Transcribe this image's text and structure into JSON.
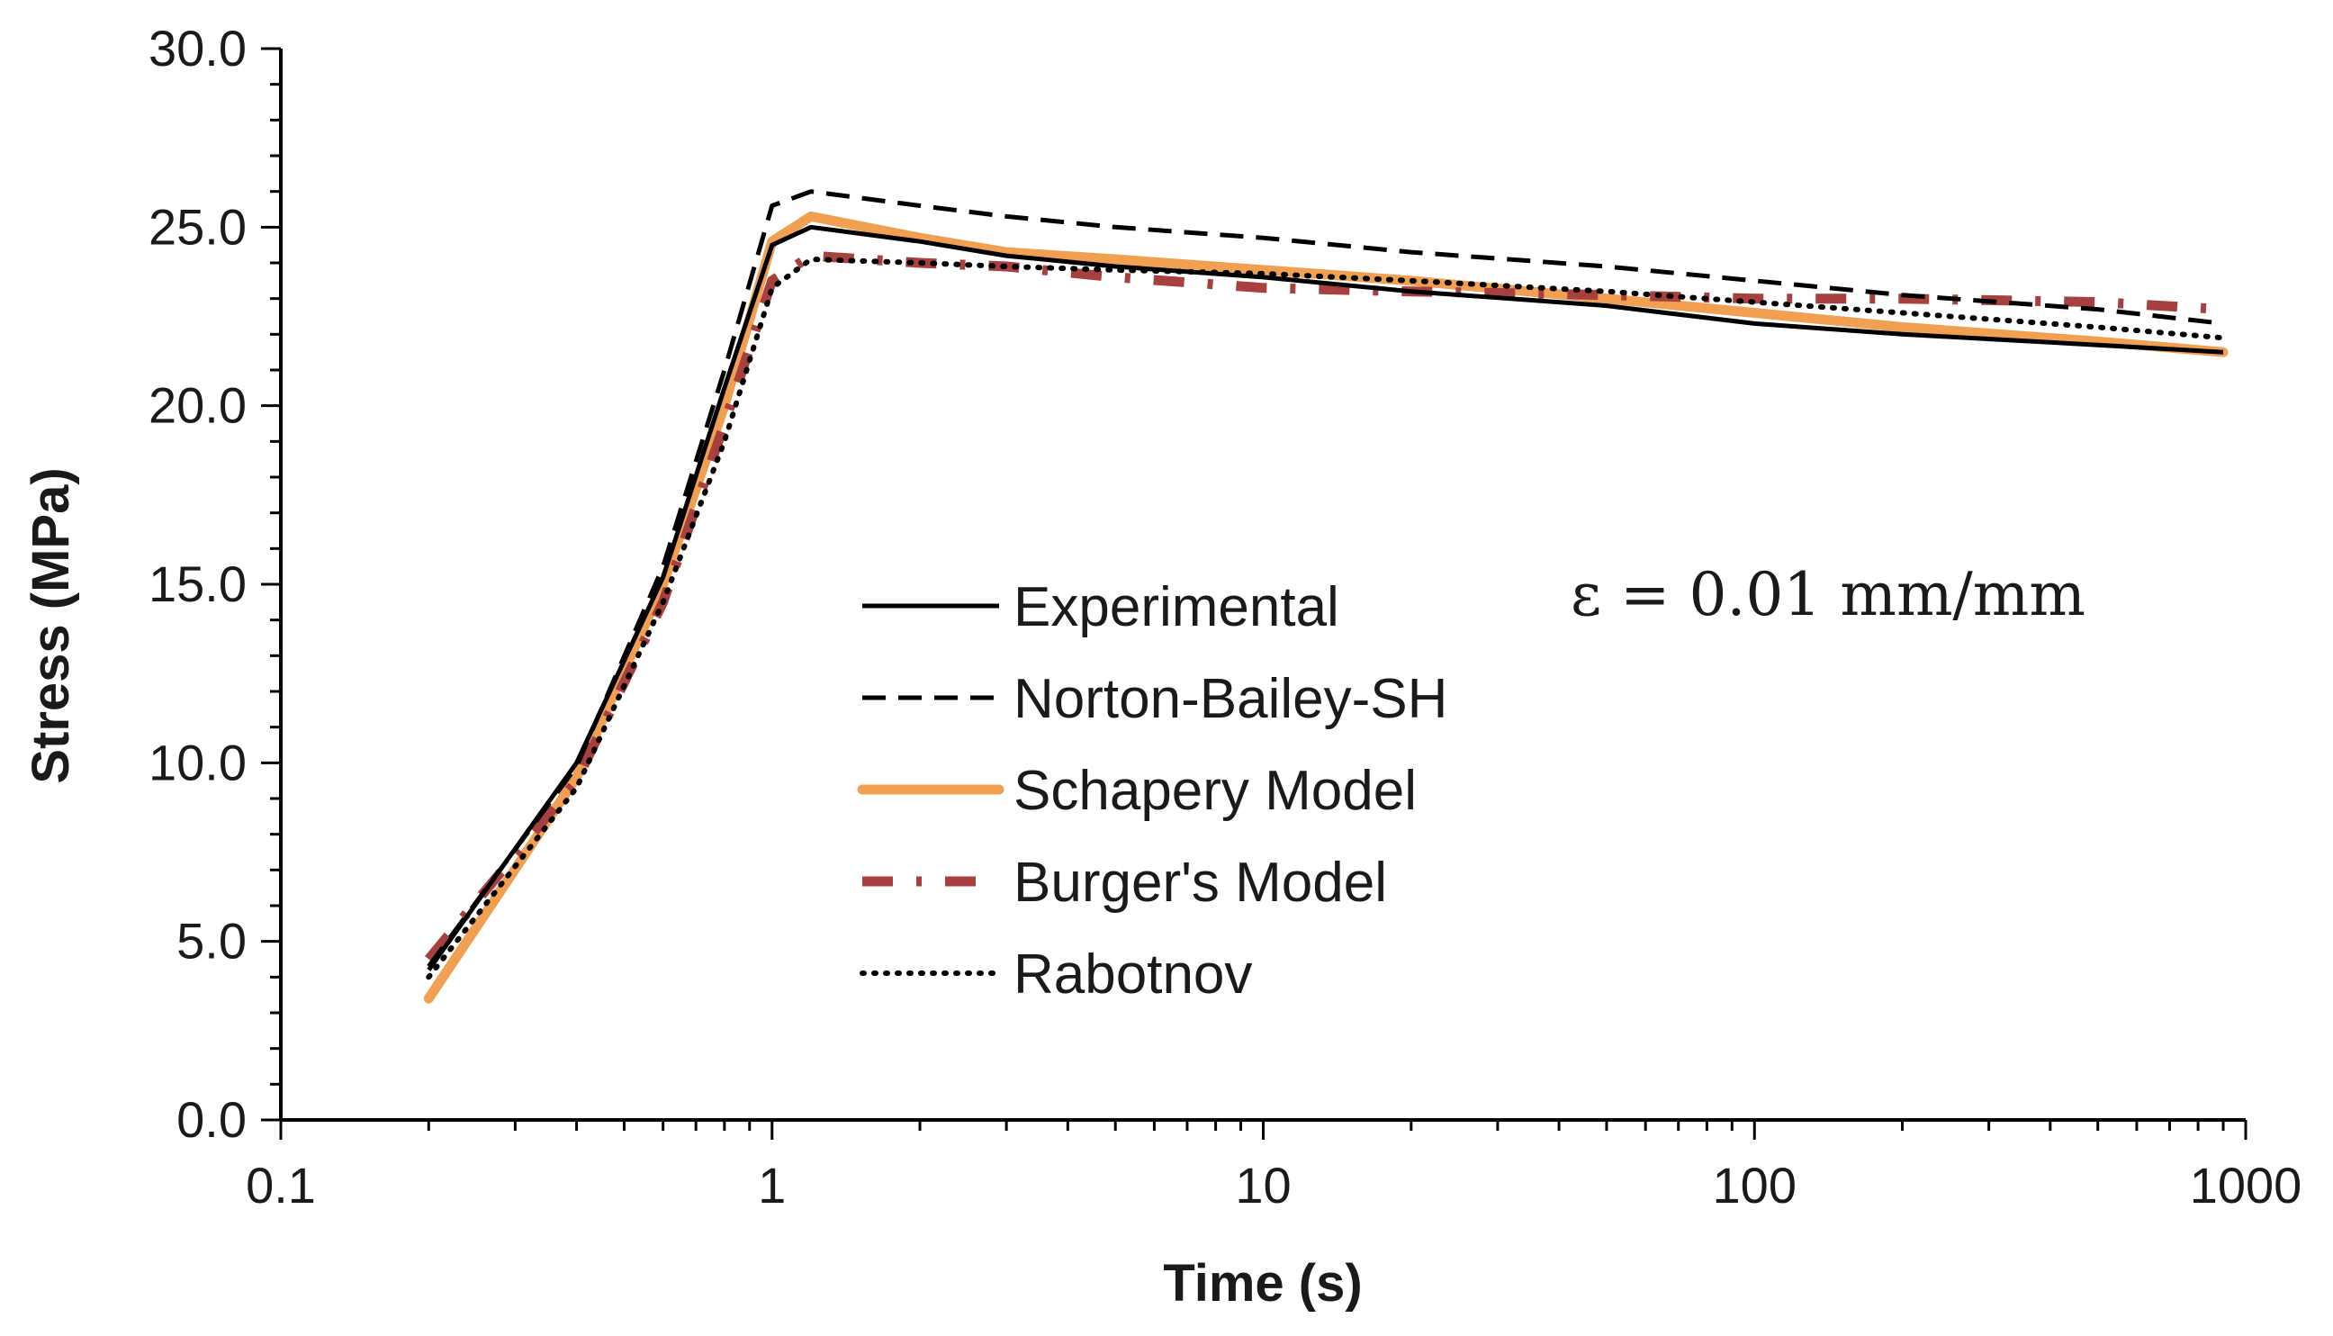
{
  "chart_data": {
    "type": "line",
    "title": "",
    "xlabel": "Time (s)",
    "ylabel": "Stress (MPa)",
    "xscale": "log",
    "xlim": [
      0.1,
      1000
    ],
    "ylim": [
      0,
      30
    ],
    "x_ticks": [
      "0.1",
      "1",
      "10",
      "100",
      "1000"
    ],
    "y_ticks": [
      "0.0",
      "5.0",
      "10.0",
      "15.0",
      "20.0",
      "25.0",
      "30.0"
    ],
    "grid": false,
    "legend_position": "center",
    "annotation": "ε = 0.01 mm/mm",
    "series": [
      {
        "name": "Experimental",
        "color": "#000000",
        "style": "solid",
        "x": [
          0.2,
          0.4,
          0.6,
          0.8,
          1.0,
          1.2,
          2,
          3,
          5,
          10,
          20,
          50,
          100,
          200,
          500,
          900
        ],
        "y": [
          4.2,
          10.0,
          15.2,
          20.5,
          24.5,
          25.0,
          24.6,
          24.2,
          23.9,
          23.6,
          23.2,
          22.8,
          22.3,
          22.0,
          21.7,
          21.5
        ]
      },
      {
        "name": "Norton-Bailey-SH",
        "color": "#000000",
        "style": "dashed",
        "x": [
          0.2,
          0.4,
          0.6,
          0.8,
          1.0,
          1.2,
          2,
          3,
          5,
          10,
          20,
          50,
          100,
          200,
          500,
          900
        ],
        "y": [
          4.3,
          9.9,
          15.5,
          21.0,
          25.6,
          26.0,
          25.6,
          25.3,
          25.0,
          24.7,
          24.3,
          23.9,
          23.5,
          23.1,
          22.7,
          22.3
        ]
      },
      {
        "name": "Schapery Model",
        "color": "#f0a050",
        "style": "solid-thick",
        "x": [
          0.2,
          0.4,
          0.6,
          0.8,
          1.0,
          1.2,
          2,
          3,
          5,
          10,
          20,
          50,
          100,
          200,
          500,
          900
        ],
        "y": [
          3.4,
          9.6,
          15.0,
          20.0,
          24.6,
          25.3,
          24.7,
          24.3,
          24.1,
          23.8,
          23.5,
          23.0,
          22.6,
          22.2,
          21.8,
          21.5
        ]
      },
      {
        "name": "Burger's Model",
        "color": "#a84040",
        "style": "dash-dot",
        "x": [
          0.2,
          0.4,
          0.6,
          0.8,
          1.0,
          1.2,
          2,
          3,
          5,
          10,
          20,
          50,
          100,
          200,
          500,
          900
        ],
        "y": [
          4.5,
          9.5,
          14.5,
          19.5,
          23.5,
          24.2,
          24.0,
          23.9,
          23.6,
          23.3,
          23.2,
          23.1,
          23.0,
          23.0,
          22.9,
          22.7
        ]
      },
      {
        "name": "Rabotnov",
        "color": "#000000",
        "style": "dotted",
        "x": [
          0.2,
          0.4,
          0.6,
          0.8,
          1.0,
          1.2,
          2,
          3,
          5,
          10,
          20,
          50,
          100,
          200,
          500,
          900
        ],
        "y": [
          4.0,
          9.3,
          14.5,
          19.0,
          23.3,
          24.1,
          24.0,
          23.9,
          23.8,
          23.7,
          23.5,
          23.2,
          22.9,
          22.6,
          22.2,
          21.9
        ]
      }
    ]
  }
}
